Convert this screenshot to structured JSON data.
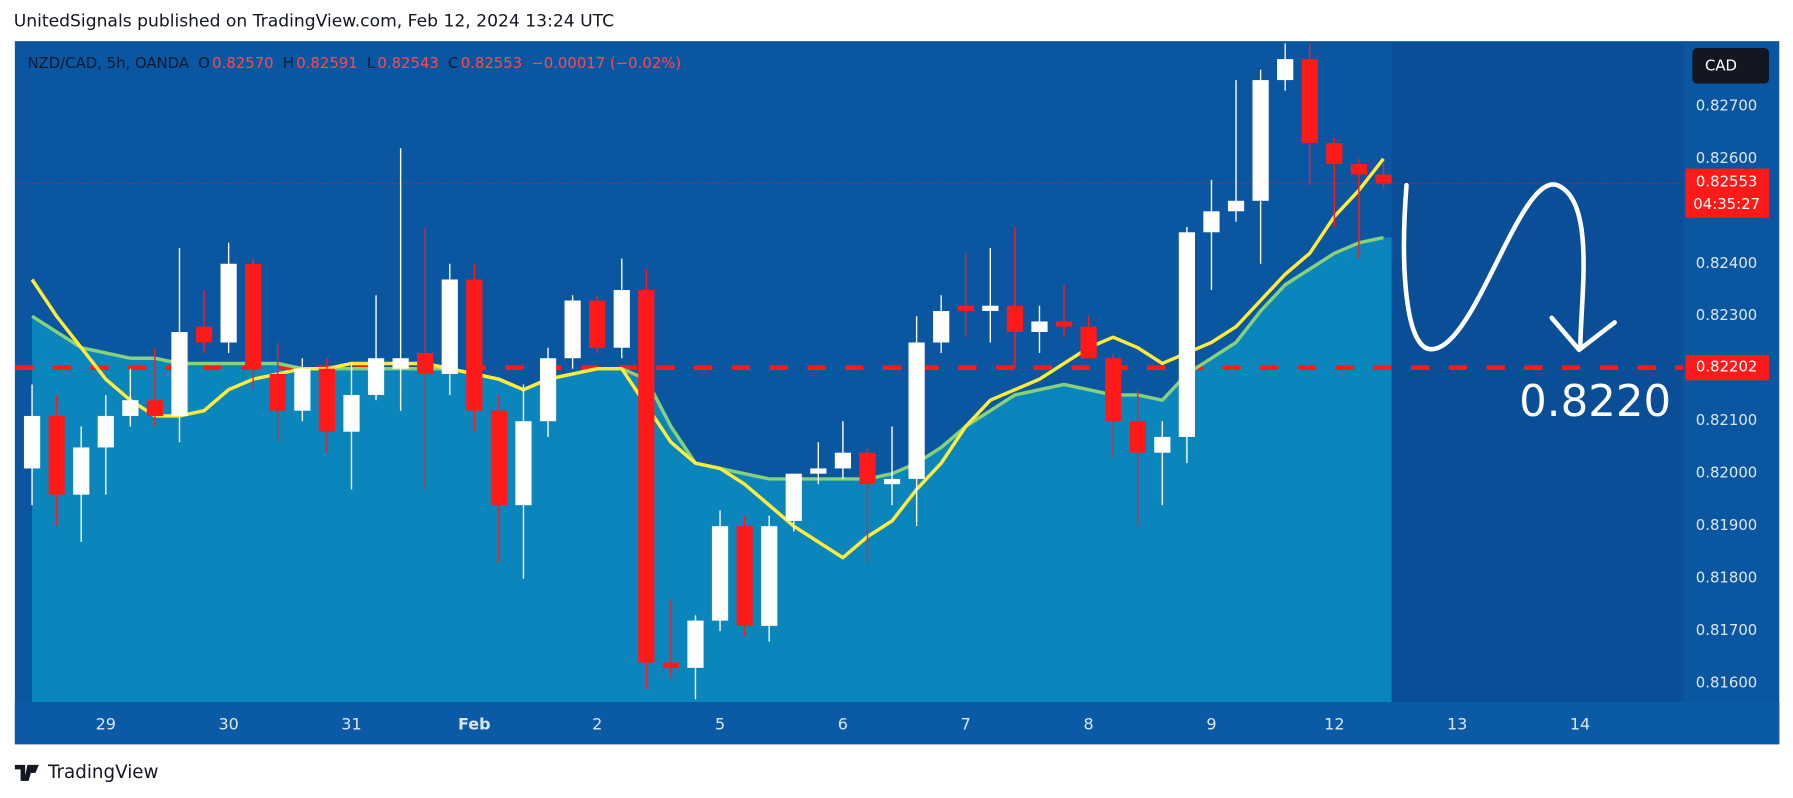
{
  "published": "UnitedSignals published on TradingView.com, Feb 12, 2024 13:24 UTC",
  "brand": "TradingView",
  "currency_button": "CAD",
  "header": {
    "symbol": "NZD/CAD, 5h, OANDA",
    "items": [
      {
        "key": "O",
        "value": "0.82570"
      },
      {
        "key": "H",
        "value": "0.82591"
      },
      {
        "key": "L",
        "value": "0.82543"
      },
      {
        "key": "C",
        "value": "0.82553"
      }
    ],
    "change": "−0.00017 (−0.02%)"
  },
  "chart_data": {
    "type": "candlestick",
    "up_color": "#ffffff",
    "down_color": "#ff1a1a",
    "open": [
      0.8201,
      0.8211,
      0.8196,
      0.8205,
      0.8211,
      0.8214,
      0.8211,
      0.8228,
      0.8225,
      0.824,
      0.8219,
      0.8212,
      0.822,
      0.8208,
      0.8215,
      0.822,
      0.8223,
      0.8219,
      0.8237,
      0.8212,
      0.8194,
      0.821,
      0.8222,
      0.8233,
      0.8224,
      0.8235,
      0.8164,
      0.8163,
      0.8172,
      0.819,
      0.8171,
      0.8191,
      0.82,
      0.8201,
      0.8204,
      0.8198,
      0.8199,
      0.8225,
      0.8232,
      0.8231,
      0.8232,
      0.8227,
      0.8229,
      0.8228,
      0.8222,
      0.821,
      0.8204,
      0.8207,
      0.8246,
      0.825,
      0.8252,
      0.8275,
      0.8279,
      0.8263,
      0.8259,
      0.8257
    ],
    "high": [
      0.8217,
      0.8215,
      0.8209,
      0.8215,
      0.822,
      0.8224,
      0.8243,
      0.8235,
      0.8244,
      0.8241,
      0.8225,
      0.8222,
      0.8222,
      0.8221,
      0.8234,
      0.8262,
      0.8247,
      0.824,
      0.824,
      0.8215,
      0.8217,
      0.8224,
      0.8234,
      0.8234,
      0.8241,
      0.8239,
      0.8176,
      0.8173,
      0.8193,
      0.8192,
      0.8192,
      0.82,
      0.8206,
      0.821,
      0.8205,
      0.8209,
      0.823,
      0.8234,
      0.8242,
      0.8243,
      0.8247,
      0.8232,
      0.8236,
      0.823,
      0.8223,
      0.8216,
      0.821,
      0.8247,
      0.8256,
      0.8275,
      0.8277,
      0.8282,
      0.8282,
      0.8264,
      0.826,
      0.82591
    ],
    "low": [
      0.8194,
      0.819,
      0.8187,
      0.8196,
      0.8209,
      0.8209,
      0.8206,
      0.8223,
      0.8223,
      0.8216,
      0.8206,
      0.821,
      0.8204,
      0.8197,
      0.8214,
      0.8212,
      0.8197,
      0.8215,
      0.8208,
      0.8183,
      0.818,
      0.8207,
      0.822,
      0.8223,
      0.8222,
      0.8159,
      0.8161,
      0.8157,
      0.817,
      0.8169,
      0.8168,
      0.8189,
      0.8198,
      0.8199,
      0.8183,
      0.8194,
      0.819,
      0.8223,
      0.8226,
      0.8225,
      0.822,
      0.8223,
      0.8226,
      0.8222,
      0.8203,
      0.819,
      0.8194,
      0.8202,
      0.8235,
      0.8248,
      0.824,
      0.8273,
      0.8255,
      0.8247,
      0.8241,
      0.82543
    ],
    "close": [
      0.8211,
      0.8196,
      0.8205,
      0.8211,
      0.8214,
      0.8211,
      0.8227,
      0.8225,
      0.824,
      0.822,
      0.8212,
      0.822,
      0.8208,
      0.8215,
      0.8222,
      0.8222,
      0.8219,
      0.8237,
      0.8212,
      0.8194,
      0.821,
      0.8222,
      0.8233,
      0.8224,
      0.8235,
      0.8164,
      0.8163,
      0.8172,
      0.819,
      0.8171,
      0.819,
      0.82,
      0.8201,
      0.8204,
      0.8198,
      0.8199,
      0.8225,
      0.8231,
      0.8231,
      0.8232,
      0.8227,
      0.8229,
      0.8228,
      0.8222,
      0.821,
      0.8204,
      0.8207,
      0.8246,
      0.825,
      0.8252,
      0.8275,
      0.8279,
      0.8263,
      0.8259,
      0.8257,
      0.82553
    ],
    "overlays": [
      {
        "color": "#86d17a",
        "fill": "#0b86bd",
        "values": [
          0.823,
          0.8227,
          0.8224,
          0.8223,
          0.8222,
          0.8222,
          0.8221,
          0.8221,
          0.8221,
          0.8221,
          0.8221,
          0.822,
          0.822,
          0.822,
          0.822,
          0.822,
          0.822,
          0.822,
          0.8219,
          0.8218,
          0.8216,
          0.8218,
          0.8219,
          0.822,
          0.822,
          0.8218,
          0.8209,
          0.8202,
          0.8201,
          0.82,
          0.8199,
          0.8199,
          0.8199,
          0.8199,
          0.8199,
          0.82,
          0.8202,
          0.8205,
          0.8209,
          0.8212,
          0.8215,
          0.8216,
          0.8217,
          0.8216,
          0.8215,
          0.8215,
          0.8214,
          0.8219,
          0.8222,
          0.8225,
          0.8231,
          0.8236,
          0.8239,
          0.8242,
          0.8244,
          0.8245
        ]
      },
      {
        "color": "#ffeb3b",
        "values": [
          0.8237,
          0.823,
          0.8224,
          0.8218,
          0.8214,
          0.8211,
          0.8211,
          0.8212,
          0.8216,
          0.8218,
          0.8219,
          0.822,
          0.822,
          0.8221,
          0.8221,
          0.8221,
          0.8221,
          0.822,
          0.8219,
          0.8218,
          0.8216,
          0.8218,
          0.8219,
          0.822,
          0.822,
          0.8213,
          0.8206,
          0.8202,
          0.8201,
          0.8198,
          0.8194,
          0.819,
          0.8187,
          0.8184,
          0.8188,
          0.8191,
          0.8197,
          0.8202,
          0.8209,
          0.8214,
          0.8216,
          0.8218,
          0.8221,
          0.8224,
          0.8226,
          0.8224,
          0.8221,
          0.8223,
          0.8225,
          0.8228,
          0.8233,
          0.8238,
          0.8242,
          0.8249,
          0.8254,
          0.826
        ]
      }
    ],
    "xlim": [
      -0.7,
      67.2
    ],
    "xticks": [
      {
        "value": 3,
        "label": "29"
      },
      {
        "value": 8,
        "label": "30"
      },
      {
        "value": 13,
        "label": "31"
      },
      {
        "value": 18,
        "label": "Feb"
      },
      {
        "value": 23,
        "label": "2"
      },
      {
        "value": 28,
        "label": "5"
      },
      {
        "value": 33,
        "label": "6"
      },
      {
        "value": 38,
        "label": "7"
      },
      {
        "value": 43,
        "label": "8"
      },
      {
        "value": 48,
        "label": "9"
      },
      {
        "value": 53,
        "label": "12"
      },
      {
        "value": 58,
        "label": "13"
      },
      {
        "value": 63,
        "label": "14"
      }
    ],
    "ylim": [
      0.81565,
      0.82822
    ],
    "yticks": [
      {
        "value": 0.827,
        "label": "0.82700"
      },
      {
        "value": 0.826,
        "label": "0.82600"
      },
      {
        "value": 0.824,
        "label": "0.82400"
      },
      {
        "value": 0.823,
        "label": "0.82300"
      },
      {
        "value": 0.821,
        "label": "0.82100"
      },
      {
        "value": 0.82,
        "label": "0.82000"
      },
      {
        "value": 0.819,
        "label": "0.81900"
      },
      {
        "value": 0.818,
        "label": "0.81800"
      },
      {
        "value": 0.817,
        "label": "0.81700"
      },
      {
        "value": 0.816,
        "label": "0.81600"
      }
    ],
    "price_line": {
      "value": 0.82553,
      "countdown": "04:35:27",
      "color": "#ff1a1a"
    },
    "level_line": {
      "value": 0.82202,
      "color": "#ff1a1a"
    },
    "annotation": "0.8220"
  }
}
